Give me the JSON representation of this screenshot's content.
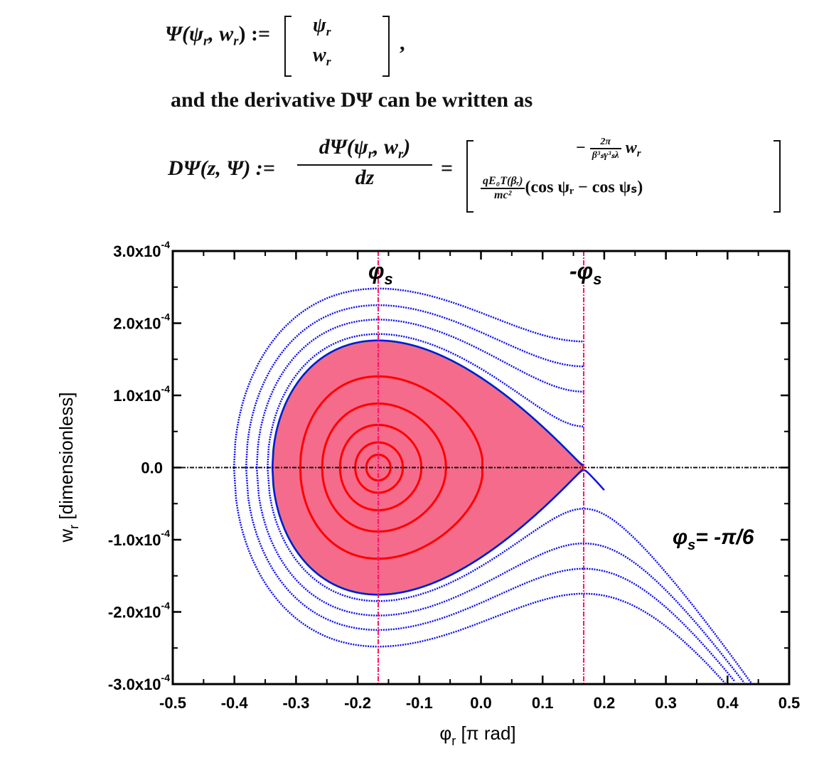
{
  "equations": {
    "eq1_lhs": "Ψ(ψ",
    "eq1_lhs_sub1": "r",
    "eq1_lhs_mid": ", w",
    "eq1_lhs_sub2": "r",
    "eq1_lhs_end": ") :=",
    "eq1_vec_top": "ψ",
    "eq1_vec_top_sub": "r",
    "eq1_vec_bot": "w",
    "eq1_vec_bot_sub": "r",
    "eq1_comma": ",",
    "sentence": "and the derivative DΨ can be written as",
    "eq2_lhs": "DΨ(z, Ψ) :=",
    "eq2_frac_num": "dΨ(ψ",
    "eq2_frac_num_sub": "r",
    "eq2_frac_num_mid": ", w",
    "eq2_frac_num_sub2": "r",
    "eq2_frac_num_end": ")",
    "eq2_frac_den": "dz",
    "eq2_equals": "=",
    "eq2_row1_minus": "−",
    "eq2_row1_num": "2π",
    "eq2_row1_den": "β³ₛγ³ₛλ",
    "eq2_row1_var": "w",
    "eq2_row1_var_sub": "r",
    "eq2_row2_num": "qE₀T(βᵣ)",
    "eq2_row2_den": "mc²",
    "eq2_row2_rest": "(cos ψᵣ − cos ψₛ)"
  },
  "chart_data": {
    "type": "scatter",
    "title": "",
    "xlabel": "φr [π rad]",
    "xlabel_main": "φ",
    "xlabel_sub": "r",
    "xlabel_unit": " [π rad]",
    "ylabel": "wr [dimensionless]",
    "ylabel_main": "w",
    "ylabel_sub": "r",
    "ylabel_unit": " [dimensionless]",
    "xlim": [
      -0.5,
      0.5
    ],
    "ylim": [
      -0.0003,
      0.0003
    ],
    "x_ticks": [
      "-0.5",
      "-0.4",
      "-0.3",
      "-0.2",
      "-0.1",
      "0.0",
      "0.1",
      "0.2",
      "0.3",
      "0.4",
      "0.5"
    ],
    "x_tick_values": [
      -0.5,
      -0.4,
      -0.3,
      -0.2,
      -0.1,
      0.0,
      0.1,
      0.2,
      0.3,
      0.4,
      0.5
    ],
    "y_ticks": [
      {
        "mant": "3.0x10",
        "exp": "-4",
        "value": 0.0003
      },
      {
        "mant": "2.0x10",
        "exp": "-4",
        "value": 0.0002
      },
      {
        "mant": "1.0x10",
        "exp": "-4",
        "value": 0.0001
      },
      {
        "mant": "0.0",
        "exp": "",
        "value": 0.0
      },
      {
        "mant": "-1.0x10",
        "exp": "-4",
        "value": -0.0001
      },
      {
        "mant": "-2.0x10",
        "exp": "-4",
        "value": -0.0002
      },
      {
        "mant": "-3.0x10",
        "exp": "-4",
        "value": -0.0003
      }
    ],
    "phi_s": -0.1667,
    "vlines": [
      {
        "x": -0.1667,
        "label_main": "φ",
        "label_sub": "s",
        "label_prefix": ""
      },
      {
        "x": 0.1667,
        "label_main": "φ",
        "label_sub": "s",
        "label_prefix": "-"
      }
    ],
    "annotation": {
      "main": "φ",
      "sub": "s",
      "rest": "= -π/6"
    },
    "bounded_orbit_amplitudes": [
      0.02,
      0.04,
      0.07,
      0.11,
      0.17
    ],
    "separatrix_wmax": 0.000176,
    "unbounded_orbit_wmax": [
      0.000185,
      0.000205,
      0.000225,
      0.000248
    ],
    "colors": {
      "bucket_fill": "#f56b8b",
      "bounded": "#ff0000",
      "separatrix": "#22dd22",
      "unbounded": "#1010ee",
      "vline": "#ff1166",
      "axis0": "#111111"
    }
  }
}
